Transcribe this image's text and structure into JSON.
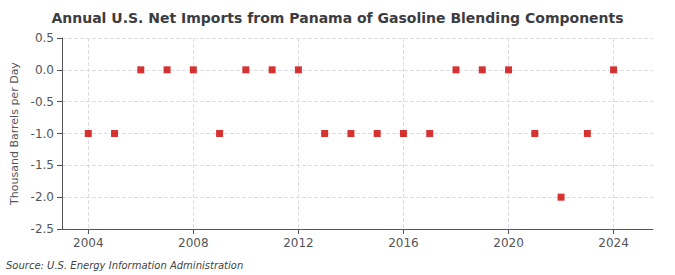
{
  "chart_data": {
    "type": "scatter",
    "title": "Annual U.S. Net Imports from Panama of Gasoline Blending Components",
    "ylabel": "Thousand Barrels per Day",
    "source": "Source: U.S. Energy Information Administration",
    "x": [
      2004,
      2005,
      2006,
      2007,
      2008,
      2009,
      2010,
      2011,
      2012,
      2013,
      2014,
      2015,
      2016,
      2017,
      2018,
      2019,
      2020,
      2021,
      2022,
      2023,
      2024
    ],
    "values": [
      -1.0,
      -1.0,
      0.0,
      0.0,
      0.0,
      -1.0,
      0.0,
      0.0,
      0.0,
      -1.0,
      -1.0,
      -1.0,
      -1.0,
      -1.0,
      0.0,
      0.0,
      0.0,
      -1.0,
      -2.0,
      -1.0,
      0.0
    ],
    "color": "#cc0000",
    "marker": "square",
    "xlim": [
      2003.0,
      2025.5
    ],
    "xticks": [
      2004,
      2008,
      2012,
      2016,
      2020,
      2024
    ],
    "ylim": [
      -2.5,
      0.5
    ],
    "yticks": [
      0.5,
      {
        "value": 0.0,
        "label": "0.0"
      },
      -0.5,
      {
        "value": -1.0,
        "label": "-1.0"
      },
      -1.5,
      {
        "value": -2.0,
        "label": "-2.0"
      },
      -2.5
    ],
    "grid": true
  }
}
